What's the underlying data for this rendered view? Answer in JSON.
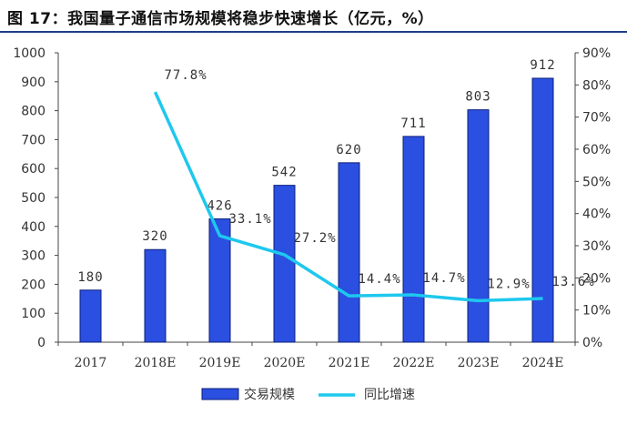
{
  "header": {
    "title": "图 17：我国量子通信市场规模将稳步快速增长（亿元，%）"
  },
  "chart_data": {
    "type": "bar",
    "categories": [
      "2017",
      "2018E",
      "2019E",
      "2020E",
      "2021E",
      "2022E",
      "2023E",
      "2024E"
    ],
    "series": [
      {
        "name": "交易规模",
        "type": "bar",
        "axis": "left",
        "color": "#2b4fe0",
        "values": [
          180,
          320,
          426,
          542,
          620,
          711,
          803,
          912
        ],
        "labels": [
          "180",
          "320",
          "426",
          "542",
          "620",
          "711",
          "803",
          "912"
        ]
      },
      {
        "name": "同比增速",
        "type": "line",
        "axis": "right",
        "color": "#1ec8ee",
        "values": [
          null,
          77.8,
          33.1,
          27.2,
          14.4,
          14.7,
          12.9,
          13.6
        ],
        "labels": [
          "",
          "77.8%",
          "33.1%",
          "27.2%",
          "14.4%",
          "14.7%",
          "12.9%",
          "13.6%"
        ]
      }
    ],
    "y_left": {
      "range": [
        0,
        1000
      ],
      "ticks": [
        "0",
        "100",
        "200",
        "300",
        "400",
        "500",
        "600",
        "700",
        "800",
        "900",
        "1000"
      ]
    },
    "y_right": {
      "range": [
        0,
        90
      ],
      "ticks": [
        "0%",
        "10%",
        "20%",
        "30%",
        "40%",
        "50%",
        "60%",
        "70%",
        "80%",
        "90%"
      ]
    },
    "grid": false,
    "legend_position": "bottom"
  }
}
